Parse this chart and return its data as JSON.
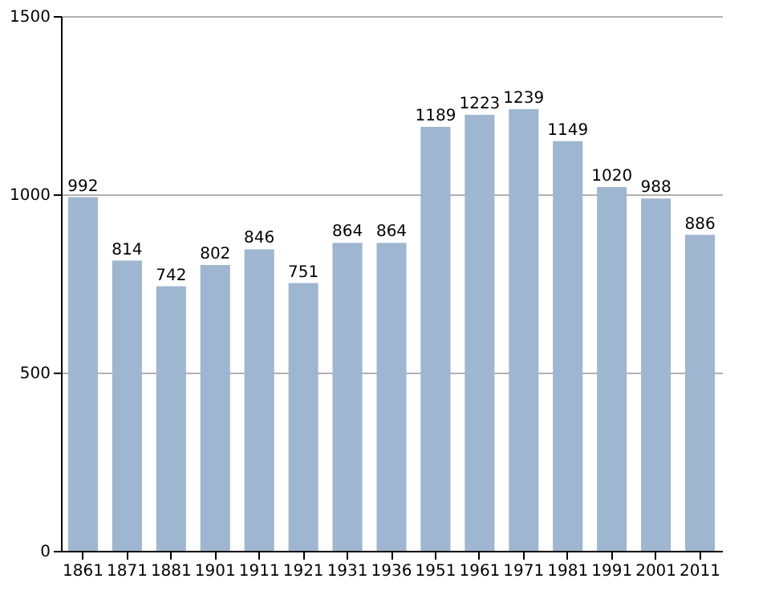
{
  "chart_data": {
    "type": "bar",
    "categories": [
      "1861",
      "1871",
      "1881",
      "1901",
      "1911",
      "1921",
      "1931",
      "1936",
      "1951",
      "1961",
      "1971",
      "1981",
      "1991",
      "2001",
      "2011"
    ],
    "values": [
      992,
      814,
      742,
      802,
      846,
      751,
      864,
      864,
      1189,
      1223,
      1239,
      1149,
      1020,
      988,
      886
    ],
    "color": "#9fb6d0",
    "ylim": [
      0,
      1500
    ],
    "yticks": [
      0,
      500,
      1000,
      1500
    ],
    "grid": "y",
    "data_labels": true
  }
}
